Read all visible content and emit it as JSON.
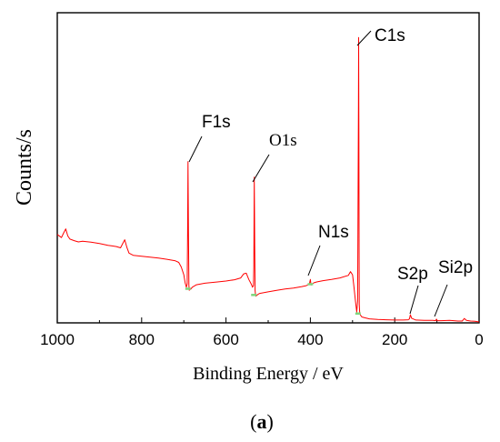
{
  "chart_data": {
    "type": "line",
    "xlabel": "Binding Energy / eV",
    "ylabel": "Counts/s",
    "panel_label_open": "(",
    "panel_label_letter": "a",
    "panel_label_close": ")",
    "xlim": [
      1000,
      0
    ],
    "x_reversed": true,
    "xticks": [
      1000,
      800,
      600,
      400,
      200,
      0
    ],
    "xtick_labels": [
      "1000",
      "800",
      "600",
      "400",
      "200",
      "0"
    ],
    "y_ticks_shown": false,
    "ylim": [
      0,
      100
    ],
    "series_color": "#ff0000",
    "marker_color": "#7cd67c",
    "series": [
      {
        "x": [
          1000,
          990,
          985,
          980,
          975,
          970,
          960,
          950,
          940,
          920,
          900,
          880,
          870,
          860,
          850,
          845,
          840,
          835,
          830,
          820,
          800,
          780,
          760,
          740,
          720,
          712,
          706,
          700,
          697,
          694,
          692,
          691,
          690,
          689,
          688,
          687,
          686,
          684,
          680,
          670,
          650,
          620,
          600,
          580,
          565,
          558,
          552,
          546,
          540,
          537,
          535,
          534,
          533,
          532,
          531,
          530,
          529,
          527,
          524,
          520,
          500,
          480,
          460,
          440,
          420,
          410,
          405,
          402,
          400,
          399,
          398,
          396,
          392,
          385,
          370,
          350,
          330,
          310,
          305,
          300,
          297,
          293,
          290,
          288,
          287,
          286,
          285.5,
          285,
          284.5,
          284,
          283,
          281,
          278,
          270,
          260,
          240,
          220,
          200,
          180,
          168,
          165,
          163,
          160,
          150,
          130,
          110,
          103,
          101,
          99,
          90,
          70,
          50,
          40,
          35,
          30,
          20,
          10,
          0
        ],
        "y": [
          28.5,
          27.5,
          29,
          30.3,
          28,
          27,
          26.5,
          26.1,
          26.3,
          26.0,
          25.6,
          25.0,
          24.8,
          24.6,
          24.2,
          25.5,
          26.8,
          24.3,
          22.5,
          21.8,
          21.5,
          21.2,
          20.9,
          20.5,
          20.0,
          19.5,
          18.0,
          15.5,
          13.0,
          11.5,
          12.5,
          30.0,
          52.0,
          30.0,
          12.0,
          10.5,
          11.0,
          10.8,
          11.5,
          12.3,
          12.8,
          13.2,
          13.5,
          13.9,
          14.5,
          15.8,
          16.0,
          14.0,
          12.5,
          11.5,
          12.0,
          18.0,
          47.0,
          25.0,
          10.5,
          9.0,
          8.6,
          8.9,
          9.2,
          9.5,
          10.0,
          10.5,
          10.9,
          11.2,
          11.7,
          12.0,
          12.3,
          12.8,
          14.0,
          12.8,
          12.2,
          12.5,
          12.9,
          13.2,
          13.6,
          14.0,
          14.5,
          15.3,
          16.5,
          15.5,
          12.0,
          7.0,
          3.5,
          7.0,
          35.0,
          70.0,
          92.0,
          60.0,
          25.0,
          6.0,
          3.0,
          2.5,
          1.9,
          1.6,
          1.3,
          1.1,
          1.0,
          0.9,
          0.9,
          1.0,
          1.3,
          2.6,
          1.5,
          0.9,
          0.8,
          0.8,
          0.7,
          1.2,
          0.7,
          0.7,
          0.8,
          0.6,
          0.6,
          1.4,
          0.8,
          0.6,
          0.5,
          0.3
        ]
      }
    ],
    "markers_x": [
      690,
      534,
      400,
      287
    ],
    "annotations": [
      {
        "label": "C1s",
        "x": 285,
        "font": "sans"
      },
      {
        "label": "F1s",
        "x": 690,
        "font": "sans"
      },
      {
        "label": "O1s",
        "x": 532,
        "font": "serif"
      },
      {
        "label": "N1s",
        "x": 400,
        "font": "sans"
      },
      {
        "label": "S2p",
        "x": 164,
        "font": "sans"
      },
      {
        "label": "Si2p",
        "x": 102,
        "font": "sans"
      }
    ]
  }
}
